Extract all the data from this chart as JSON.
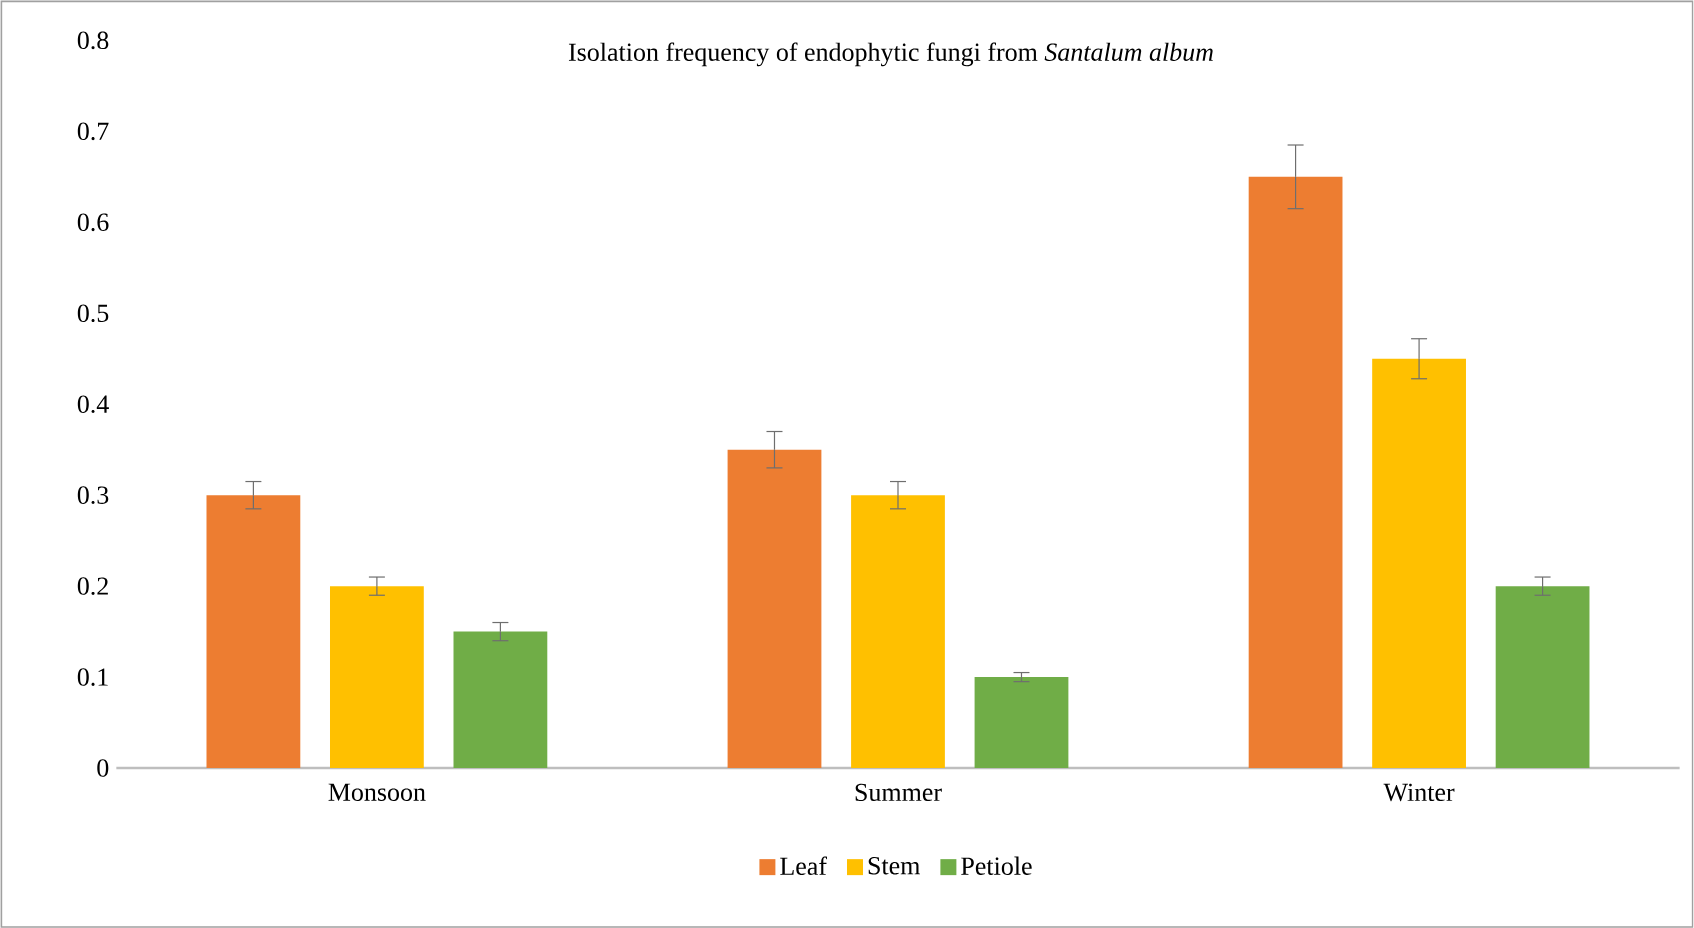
{
  "chart_data": {
    "type": "bar",
    "title": "Isolation frequency of endophytic fungi from *Santalum album*",
    "categories": [
      "Monsoon",
      "Summer",
      "Winter"
    ],
    "series": [
      {
        "name": "Leaf",
        "color": "#ed7d31",
        "values": [
          0.3,
          0.35,
          0.65
        ],
        "errors": [
          0.015,
          0.02,
          0.035
        ]
      },
      {
        "name": "Stem",
        "color": "#ffc000",
        "values": [
          0.2,
          0.3,
          0.45
        ],
        "errors": [
          0.01,
          0.015,
          0.022
        ]
      },
      {
        "name": "Petiole",
        "color": "#70ad47",
        "values": [
          0.15,
          0.1,
          0.2
        ],
        "errors": [
          0.01,
          0.005,
          0.01
        ]
      }
    ],
    "ylim": [
      0,
      0.8
    ],
    "yticks": [
      0,
      0.1,
      0.2,
      0.3,
      0.4,
      0.5,
      0.6,
      0.7,
      0.8
    ],
    "legend": "bottom"
  }
}
